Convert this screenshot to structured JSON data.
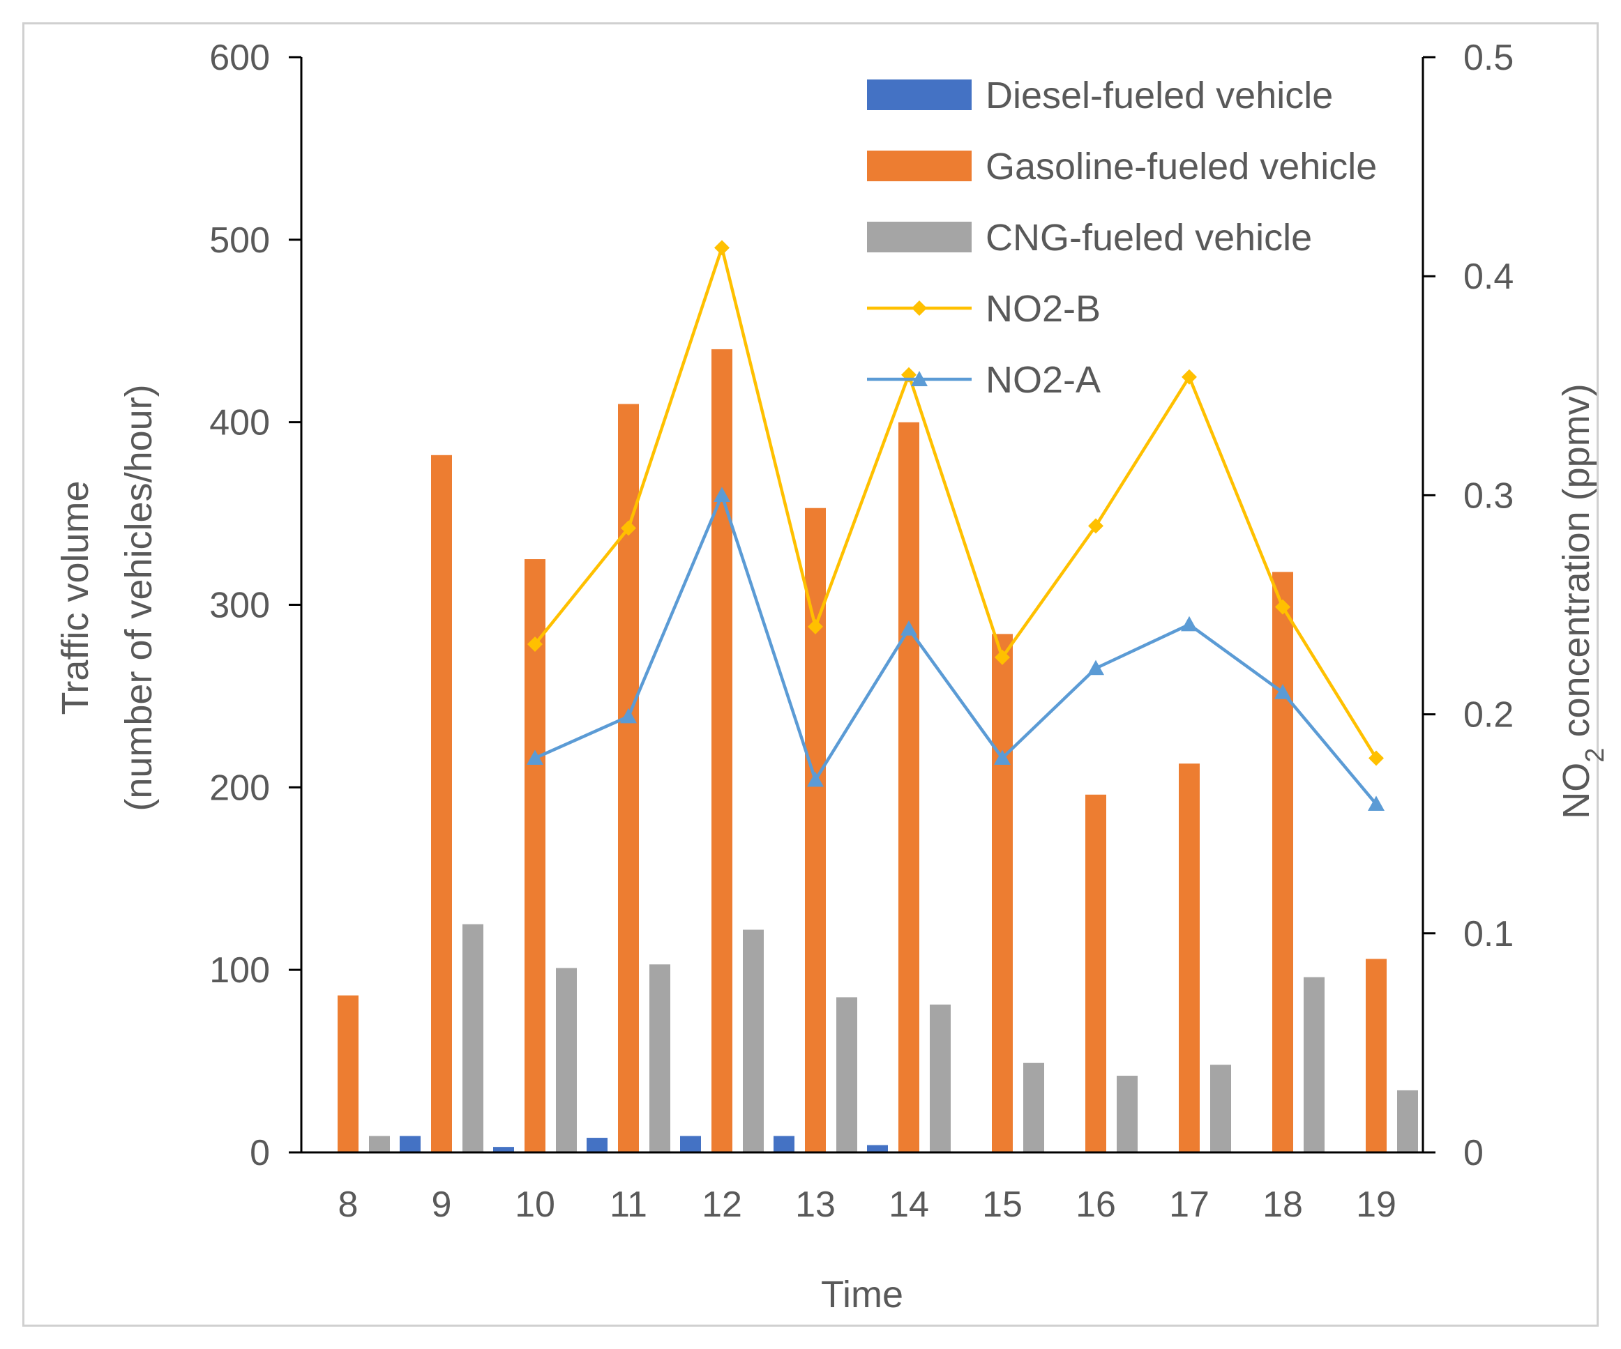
{
  "chart_data": {
    "type": "bar",
    "categories": [
      "8",
      "9",
      "10",
      "11",
      "12",
      "13",
      "14",
      "15",
      "16",
      "17",
      "18",
      "19"
    ],
    "series": [
      {
        "name": "Diesel-fueled vehicle",
        "kind": "bar",
        "axis": "left",
        "color": "#4472C4",
        "values": [
          0,
          9,
          3,
          8,
          9,
          9,
          4,
          0,
          0,
          0,
          0,
          0
        ]
      },
      {
        "name": "Gasoline-fueled vehicle",
        "kind": "bar",
        "axis": "left",
        "color": "#ED7D31",
        "values": [
          86,
          382,
          325,
          410,
          440,
          353,
          400,
          284,
          196,
          213,
          318,
          106
        ]
      },
      {
        "name": "CNG-fueled vehicle",
        "kind": "bar",
        "axis": "left",
        "color": "#A5A5A5",
        "values": [
          9,
          125,
          101,
          103,
          122,
          85,
          81,
          49,
          42,
          48,
          96,
          34
        ]
      },
      {
        "name": "NO2-B",
        "kind": "line",
        "axis": "right",
        "color": "#FFC000",
        "marker": "diamond",
        "values": [
          null,
          null,
          0.232,
          0.285,
          0.413,
          0.24,
          0.355,
          0.226,
          0.286,
          0.354,
          0.249,
          0.18
        ]
      },
      {
        "name": "NO2-A",
        "kind": "line",
        "axis": "right",
        "color": "#5B9BD5",
        "marker": "triangle",
        "values": [
          null,
          null,
          0.18,
          0.199,
          0.3,
          0.17,
          0.239,
          0.18,
          0.221,
          0.241,
          0.21,
          0.159
        ]
      }
    ],
    "xlabel": "Time",
    "ylabel_left_line1": "Traffic volume",
    "ylabel_left_line2": "(number of vehicles/hour)",
    "ylabel_right_main": "NO",
    "ylabel_right_sub": "2",
    "ylabel_right_rest": " concentration (ppmv)",
    "ylim_left": [
      0,
      600
    ],
    "ylim_right": [
      0,
      0.5
    ],
    "yticks_left": [
      "0",
      "100",
      "200",
      "300",
      "400",
      "500",
      "600"
    ],
    "yticks_right": [
      "0",
      "0.1",
      "0.2",
      "0.3",
      "0.4",
      "0.5"
    ],
    "legend_position": "top-right",
    "grid": false
  }
}
